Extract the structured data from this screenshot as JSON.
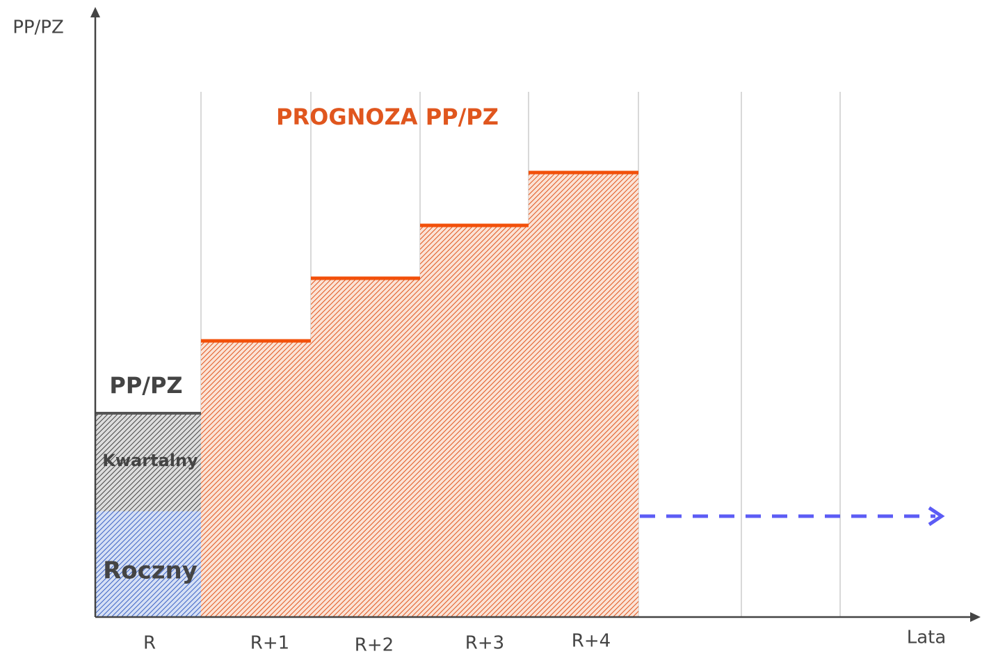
{
  "axis": {
    "y_label": "PP/PZ",
    "x_label": "Lata"
  },
  "categories": [
    "R",
    "R+1",
    "R+2",
    "R+3",
    "R+4"
  ],
  "title": "PROGNOZA PP/PZ",
  "labels": {
    "current": "PP/PZ",
    "quarterly": "Kwartalny",
    "annual": "Roczny"
  }
}
